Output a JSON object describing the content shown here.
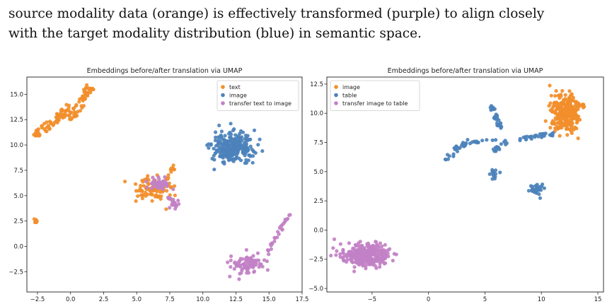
{
  "caption": {
    "line1": "source modality data (orange) is effectively transformed (purple) to align closely",
    "line2": "with the target modality distribution (blue) in semantic space."
  },
  "chart_data": [
    {
      "type": "scatter",
      "title": "Embeddings before/after translation via UMAP",
      "xlim": [
        -3.3,
        17.5
      ],
      "ylim": [
        -4.5,
        16.7
      ],
      "xticks": [
        -2.5,
        0.0,
        2.5,
        5.0,
        7.5,
        10.0,
        12.5,
        15.0,
        17.5
      ],
      "yticks": [
        -2.5,
        0.0,
        2.5,
        5.0,
        7.5,
        10.0,
        12.5,
        15.0
      ],
      "xtick_labels": [
        "−2.5",
        "0.0",
        "2.5",
        "5.0",
        "7.5",
        "10.0",
        "12.5",
        "15.0",
        "17.5"
      ],
      "ytick_labels": [
        "−2.5",
        "0.0",
        "2.5",
        "5.0",
        "7.5",
        "10.0",
        "12.5",
        "15.0"
      ],
      "grid": false,
      "legend_position": "top-right",
      "series": [
        {
          "name": "text",
          "color": "#F28E2B",
          "clusters": [
            {
              "kind": "band",
              "from": [
                -2.7,
                10.8
              ],
              "to": [
                0.0,
                13.8
              ],
              "width": 0.7,
              "n": 70
            },
            {
              "kind": "band",
              "from": [
                0.0,
                12.5
              ],
              "to": [
                1.5,
                15.8
              ],
              "width": 0.7,
              "n": 55
            },
            {
              "kind": "blob",
              "center": [
                -2.6,
                2.4
              ],
              "spread": [
                0.12,
                0.25
              ],
              "n": 10
            },
            {
              "kind": "blob",
              "center": [
                6.3,
                5.6
              ],
              "spread": [
                1.3,
                1.0
              ],
              "n": 95
            },
            {
              "kind": "band",
              "from": [
                7.3,
                6.6
              ],
              "to": [
                7.9,
                8.0
              ],
              "width": 0.3,
              "n": 12
            }
          ]
        },
        {
          "name": "image",
          "color": "#4C82BB",
          "clusters": [
            {
              "kind": "blob",
              "center": [
                12.2,
                9.8
              ],
              "spread": [
                1.4,
                1.4
              ],
              "n": 250
            }
          ]
        },
        {
          "name": "transfer text to image",
          "color": "#C281C6",
          "clusters": [
            {
              "kind": "blob",
              "center": [
                6.7,
                6.1
              ],
              "spread": [
                0.8,
                0.5
              ],
              "n": 55
            },
            {
              "kind": "blob",
              "center": [
                7.8,
                4.4
              ],
              "spread": [
                0.4,
                0.6
              ],
              "n": 20
            },
            {
              "kind": "blob",
              "center": [
                13.5,
                -1.8
              ],
              "spread": [
                1.2,
                0.9
              ],
              "n": 90
            },
            {
              "kind": "band",
              "from": [
                14.8,
                -0.8
              ],
              "to": [
                16.5,
                3.2
              ],
              "width": 0.3,
              "n": 30
            }
          ]
        }
      ]
    },
    {
      "type": "scatter",
      "title": "Embeddings before/after translation via UMAP",
      "xlim": [
        -9.0,
        15.5
      ],
      "ylim": [
        -5.3,
        13.1
      ],
      "xticks": [
        -5,
        0,
        5,
        10,
        15
      ],
      "yticks": [
        -5.0,
        -2.5,
        0.0,
        2.5,
        5.0,
        7.5,
        10.0,
        12.5
      ],
      "xtick_labels": [
        "−5",
        "0",
        "5",
        "10",
        "15"
      ],
      "ytick_labels": [
        "−5.0",
        "−2.5",
        "0.0",
        "2.5",
        "5.0",
        "7.5",
        "10.0",
        "12.5"
      ],
      "grid": false,
      "legend_position": "top-left",
      "series": [
        {
          "name": "image",
          "color": "#F28E2B",
          "clusters": [
            {
              "kind": "blob",
              "center": [
                12.2,
                10.0
              ],
              "spread": [
                1.2,
                1.5
              ],
              "n": 260
            }
          ]
        },
        {
          "name": "table",
          "color": "#4C82BB",
          "clusters": [
            {
              "kind": "band",
              "from": [
                1.5,
                6.0
              ],
              "to": [
                3.5,
                7.8
              ],
              "width": 0.5,
              "n": 25
            },
            {
              "kind": "band",
              "from": [
                3.5,
                7.4
              ],
              "to": [
                6.0,
                7.8
              ],
              "width": 0.2,
              "n": 12
            },
            {
              "kind": "band",
              "from": [
                5.5,
                10.7
              ],
              "to": [
                6.5,
                8.5
              ],
              "width": 0.4,
              "n": 30
            },
            {
              "kind": "band",
              "from": [
                5.5,
                6.5
              ],
              "to": [
                7.0,
                7.6
              ],
              "width": 0.4,
              "n": 15
            },
            {
              "kind": "blob",
              "center": [
                5.7,
                4.8
              ],
              "spread": [
                0.35,
                0.3
              ],
              "n": 14
            },
            {
              "kind": "band",
              "from": [
                8.0,
                7.8
              ],
              "to": [
                11.5,
                8.3
              ],
              "width": 0.3,
              "n": 30
            },
            {
              "kind": "blob",
              "center": [
                9.6,
                3.4
              ],
              "spread": [
                0.5,
                0.5
              ],
              "n": 32
            }
          ]
        },
        {
          "name": "transfer image to table",
          "color": "#C281C6",
          "clusters": [
            {
              "kind": "blob",
              "center": [
                -5.6,
                -2.2
              ],
              "spread": [
                1.9,
                0.9
              ],
              "n": 320
            }
          ]
        }
      ]
    }
  ]
}
